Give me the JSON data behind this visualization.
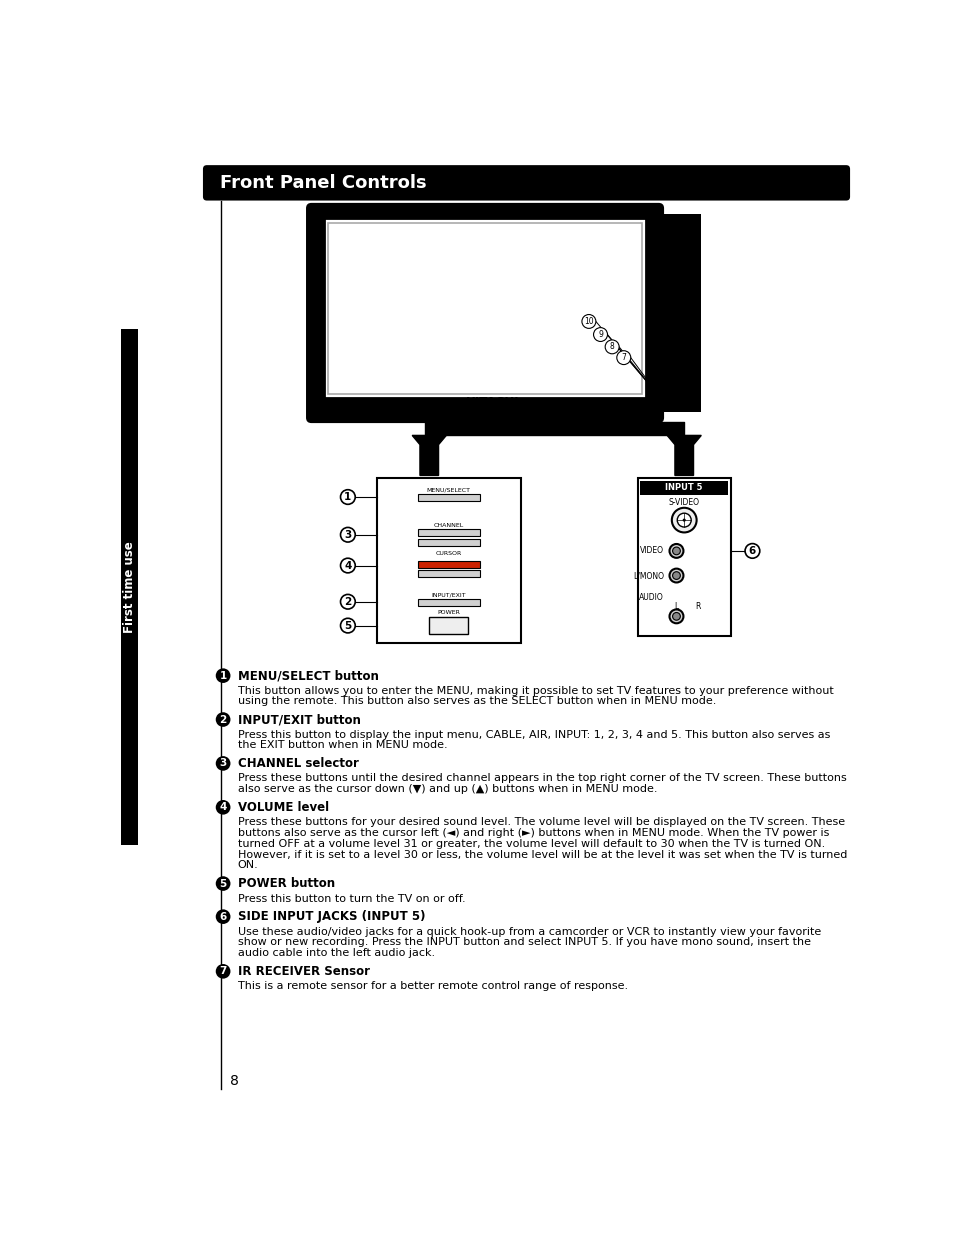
{
  "title": "Front Panel Controls",
  "sidebar_text": "First time use",
  "page_number": "8",
  "items": [
    {
      "num": "1",
      "heading": "MENU/SELECT button",
      "lines": [
        "This button allows you to enter the MENU, making it possible to set TV features to your preference without",
        "using the remote. This button also serves as the SELECT button when in MENU mode."
      ]
    },
    {
      "num": "2",
      "heading": "INPUT/EXIT button",
      "lines": [
        "Press this button to display the input menu, CABLE, AIR, INPUT: 1, 2, 3, 4 and 5. This button also serves as",
        "the EXIT button when in MENU mode."
      ]
    },
    {
      "num": "3",
      "heading": "CHANNEL selector",
      "lines": [
        "Press these buttons until the desired channel appears in the top right corner of the TV screen. These buttons",
        "also serve as the cursor down (▼) and up (▲) buttons when in MENU mode."
      ]
    },
    {
      "num": "4",
      "heading": "VOLUME level",
      "lines": [
        "Press these buttons for your desired sound level. The volume level will be displayed on the TV screen. These",
        "buttons also serve as the cursor left (◄) and right (►) buttons when in MENU mode. When the TV power is",
        "turned OFF at a volume level 31 or greater, the volume level will default to 30 when the TV is turned ON.",
        "However, if it is set to a level 30 or less, the volume level will be at the level it was set when the TV is turned",
        "ON."
      ]
    },
    {
      "num": "5",
      "heading": "POWER button",
      "lines": [
        "Press this button to turn the TV on or off."
      ]
    },
    {
      "num": "6",
      "heading": "SIDE INPUT JACKS (INPUT 5)",
      "lines": [
        "Use these audio/video jacks for a quick hook-up from a camcorder or VCR to instantly view your favorite",
        "show or new recording. Press the INPUT button and select INPUT 5. If you have mono sound, insert the",
        "audio cable into the left audio jack."
      ]
    },
    {
      "num": "7",
      "heading": "IR RECEIVER Sensor",
      "lines": [
        "This is a remote sensor for a better remote control range of response."
      ]
    }
  ]
}
